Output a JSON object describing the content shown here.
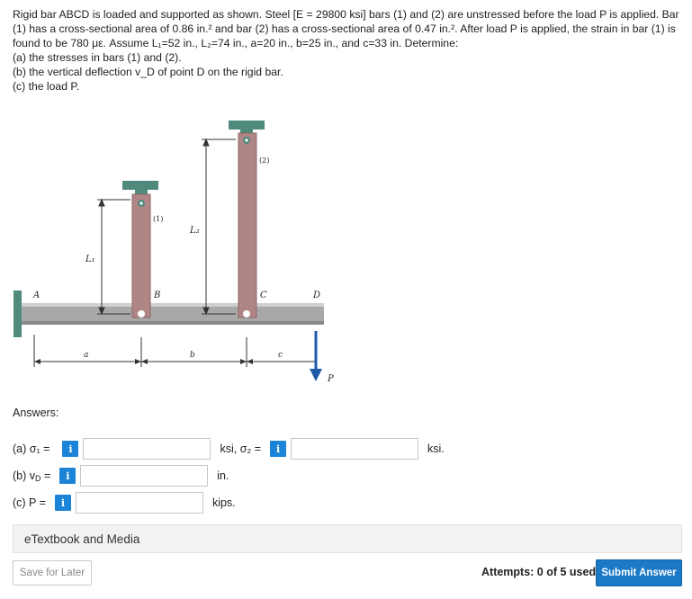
{
  "problem": {
    "line1": "Rigid bar ABCD is loaded and supported as shown. Steel [E = 29800 ksi] bars (1) and (2) are unstressed before the load P is applied. Bar",
    "line2": "(1) has a cross-sectional area of 0.86 in.² and bar (2) has a cross-sectional area of 0.47 in.². After load P is applied, the strain in bar (1) is",
    "line3": "found to be 780 με. Assume L₁=52 in., L₂=74 in., a=20 in., b=25 in., and c=33 in. Determine:",
    "part_a": "(a) the stresses in bars (1) and (2).",
    "part_b": "(b) the vertical deflection v_D of point D on the rigid bar.",
    "part_c": "(c) the load P."
  },
  "diagram": {
    "label_A": "A",
    "label_B": "B",
    "label_C": "C",
    "label_D": "D",
    "label_bar1": "(1)",
    "label_bar2": "(2)",
    "label_L1": "L₁",
    "label_L2": "L₂",
    "label_a": "a",
    "label_b": "b",
    "label_c": "c",
    "label_P": "P"
  },
  "answers": {
    "heading": "Answers:",
    "a_label": "(a) σ₁ =",
    "a_unit_mid": "ksi, σ₂ =",
    "a_unit_end": "ksi.",
    "b_label": "(b) v",
    "b_label_sub": "D",
    "b_label_eq": " =",
    "b_unit": "in.",
    "c_label": "(c) P =",
    "c_unit": "kips.",
    "info_glyph": "i",
    "sigma1_value": "",
    "sigma2_value": "",
    "vD_value": "",
    "P_value": ""
  },
  "etextbook": {
    "label": "eTextbook and Media"
  },
  "footer": {
    "save_label": "Save for Later",
    "attempts": "Attempts: 0 of 5 used",
    "submit_label": "Submit Answer"
  },
  "colors": {
    "info": "#1b84d8",
    "submit": "#1b79c7",
    "bar_rod": "#b08585",
    "support_cap": "#4f8a7d",
    "rigid_bar": "#a8a8a8",
    "load_arrow": "#1e5aa8"
  }
}
